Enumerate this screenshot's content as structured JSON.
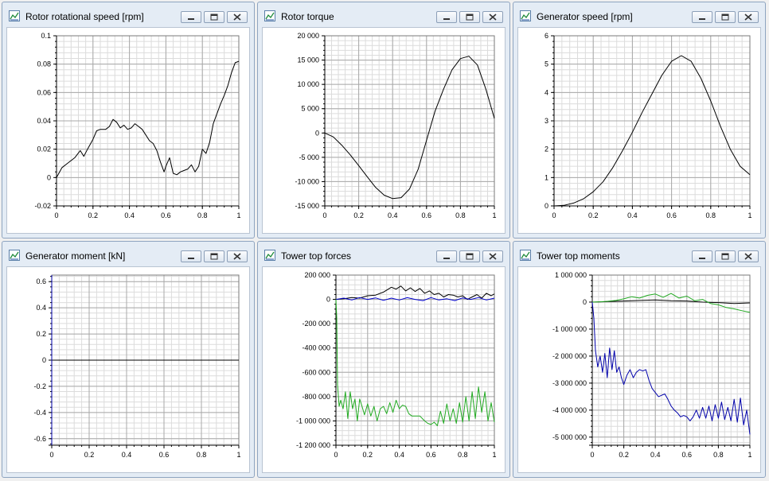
{
  "windows": [
    {
      "id": "rotor-speed",
      "title": "Rotor rotational speed [rpm]",
      "chart_data": {
        "type": "line",
        "title": "Rotor rotational speed [rpm]",
        "xlim": [
          0,
          1
        ],
        "ylim": [
          -0.02,
          0.1
        ],
        "x_ticks": [
          0,
          0.2,
          0.4,
          0.6,
          0.8,
          1
        ],
        "x_tick_labels": [
          "0",
          "0.2",
          "0.4",
          "0.6",
          "0.8",
          "1"
        ],
        "y_ticks": [
          -0.02,
          0,
          0.02,
          0.04,
          0.06,
          0.08,
          0.1
        ],
        "y_tick_labels": [
          "-0.02",
          "0",
          "0.02",
          "0.04",
          "0.06",
          "0.08",
          "0.1"
        ],
        "grid": true,
        "series": [
          {
            "color": "#000000",
            "x": [
              0,
              0.03,
              0.06,
              0.1,
              0.13,
              0.15,
              0.17,
              0.2,
              0.22,
              0.24,
              0.27,
              0.29,
              0.31,
              0.33,
              0.35,
              0.37,
              0.39,
              0.41,
              0.43,
              0.45,
              0.47,
              0.49,
              0.51,
              0.53,
              0.55,
              0.57,
              0.59,
              0.6,
              0.62,
              0.64,
              0.66,
              0.68,
              0.7,
              0.72,
              0.74,
              0.76,
              0.78,
              0.8,
              0.82,
              0.84,
              0.86,
              0.88,
              0.9,
              0.92,
              0.94,
              0.96,
              0.98,
              1
            ],
            "y": [
              0,
              0.007,
              0.01,
              0.014,
              0.019,
              0.015,
              0.02,
              0.027,
              0.033,
              0.034,
              0.034,
              0.036,
              0.041,
              0.039,
              0.035,
              0.037,
              0.034,
              0.035,
              0.038,
              0.036,
              0.034,
              0.03,
              0.026,
              0.024,
              0.019,
              0.011,
              0.004,
              0.008,
              0.014,
              0.003,
              0.002,
              0.004,
              0.005,
              0.006,
              0.009,
              0.004,
              0.008,
              0.02,
              0.017,
              0.025,
              0.038,
              0.045,
              0.052,
              0.058,
              0.065,
              0.074,
              0.081,
              0.082
            ]
          }
        ]
      }
    },
    {
      "id": "rotor-torque",
      "title": "Rotor torque",
      "chart_data": {
        "type": "line",
        "title": "Rotor torque",
        "xlim": [
          0,
          1
        ],
        "ylim": [
          -15000,
          20000
        ],
        "x_ticks": [
          0,
          0.2,
          0.4,
          0.6,
          0.8,
          1
        ],
        "x_tick_labels": [
          "0",
          "0.2",
          "0.4",
          "0.6",
          "0.8",
          "1"
        ],
        "y_ticks": [
          -15000,
          -10000,
          -5000,
          0,
          5000,
          10000,
          15000,
          20000
        ],
        "y_tick_labels": [
          "-15 000",
          "-10 000",
          "-5 000",
          "0",
          "5 000",
          "10 000",
          "15 000",
          "20 000"
        ],
        "grid": true,
        "series": [
          {
            "color": "#000000",
            "x": [
              0,
              0.05,
              0.1,
              0.15,
              0.2,
              0.25,
              0.3,
              0.35,
              0.4,
              0.45,
              0.5,
              0.55,
              0.6,
              0.65,
              0.7,
              0.75,
              0.8,
              0.85,
              0.9,
              0.95,
              1
            ],
            "y": [
              0,
              -800,
              -2500,
              -4500,
              -6700,
              -9000,
              -11200,
              -12800,
              -13500,
              -13300,
              -11500,
              -7500,
              -1500,
              4500,
              9000,
              13000,
              15300,
              15800,
              14000,
              9000,
              3000
            ]
          }
        ]
      }
    },
    {
      "id": "generator-speed",
      "title": "Generator speed [rpm]",
      "chart_data": {
        "type": "line",
        "title": "Generator speed [rpm]",
        "xlim": [
          0,
          1
        ],
        "ylim": [
          0,
          6
        ],
        "x_ticks": [
          0,
          0.2,
          0.4,
          0.6,
          0.8,
          1
        ],
        "x_tick_labels": [
          "0",
          "0.2",
          "0.4",
          "0.6",
          "0.8",
          "1"
        ],
        "y_ticks": [
          0,
          1,
          2,
          3,
          4,
          5,
          6
        ],
        "y_tick_labels": [
          "0",
          "1",
          "2",
          "3",
          "4",
          "5",
          "6"
        ],
        "grid": true,
        "series": [
          {
            "color": "#000000",
            "x": [
              0,
              0.05,
              0.1,
              0.15,
              0.2,
              0.25,
              0.3,
              0.35,
              0.4,
              0.45,
              0.5,
              0.55,
              0.6,
              0.65,
              0.7,
              0.75,
              0.8,
              0.85,
              0.9,
              0.95,
              1
            ],
            "y": [
              0,
              0.02,
              0.1,
              0.25,
              0.5,
              0.85,
              1.35,
              1.95,
              2.6,
              3.3,
              3.95,
              4.6,
              5.1,
              5.3,
              5.1,
              4.5,
              3.7,
              2.8,
              2,
              1.4,
              1.1
            ]
          }
        ]
      }
    },
    {
      "id": "generator-moment",
      "title": "Generator moment [kN]",
      "chart_data": {
        "type": "line",
        "title": "Generator moment [kN]",
        "xlim": [
          0,
          1
        ],
        "ylim": [
          -0.65,
          0.65
        ],
        "x_ticks": [
          0,
          0.2,
          0.4,
          0.6,
          0.8,
          1
        ],
        "x_tick_labels": [
          "0",
          "0.2",
          "0.4",
          "0.6",
          "0.8",
          "1"
        ],
        "y_ticks": [
          -0.6,
          -0.4,
          -0.2,
          0,
          0.2,
          0.4,
          0.6
        ],
        "y_tick_labels": [
          "-0.6",
          "-0.4",
          "-0.2",
          "0",
          "0.2",
          "0.4",
          "0.6"
        ],
        "grid": true,
        "series": [
          {
            "color": "#000000",
            "x": [
              0,
              1
            ],
            "y": [
              0,
              0
            ]
          },
          {
            "color": "#0000aa",
            "x": [
              0,
              0
            ],
            "y": [
              0.65,
              -0.65
            ]
          }
        ]
      }
    },
    {
      "id": "tower-top-forces",
      "title": "Tower top forces",
      "chart_data": {
        "type": "line",
        "title": "Tower top forces",
        "xlim": [
          0,
          1
        ],
        "ylim": [
          -1200000,
          200000
        ],
        "x_ticks": [
          0,
          0.2,
          0.4,
          0.6,
          0.8,
          1
        ],
        "x_tick_labels": [
          "0",
          "0.2",
          "0.4",
          "0.6",
          "0.8",
          "1"
        ],
        "y_ticks": [
          -1200000,
          -1000000,
          -800000,
          -600000,
          -400000,
          -200000,
          0,
          200000
        ],
        "y_tick_labels": [
          "-1 200 000",
          "-1 000 000",
          "-800 000",
          "-600 000",
          "-400 000",
          "-200 000",
          "0",
          "200 000"
        ],
        "grid": true,
        "series": [
          {
            "color": "#000000",
            "x": [
              0,
              0.05,
              0.1,
              0.15,
              0.2,
              0.25,
              0.3,
              0.35,
              0.38,
              0.41,
              0.44,
              0.47,
              0.5,
              0.53,
              0.56,
              0.59,
              0.62,
              0.65,
              0.68,
              0.71,
              0.74,
              0.77,
              0.8,
              0.83,
              0.86,
              0.89,
              0.92,
              0.95,
              0.98,
              1
            ],
            "y": [
              0,
              5000,
              15000,
              10000,
              30000,
              35000,
              60000,
              100000,
              85000,
              110000,
              70000,
              95000,
              65000,
              90000,
              50000,
              70000,
              40000,
              50000,
              20000,
              40000,
              35000,
              20000,
              30000,
              0,
              20000,
              40000,
              10000,
              50000,
              30000,
              45000
            ]
          },
          {
            "color": "#0000cc",
            "x": [
              0,
              0.05,
              0.1,
              0.15,
              0.2,
              0.25,
              0.3,
              0.35,
              0.4,
              0.45,
              0.5,
              0.55,
              0.6,
              0.65,
              0.7,
              0.75,
              0.8,
              0.85,
              0.9,
              0.95,
              1
            ],
            "y": [
              0,
              10000,
              -5000,
              15000,
              0,
              12000,
              -8000,
              10000,
              -5000,
              14000,
              0,
              -10000,
              15000,
              -5000,
              5000,
              -10000,
              12000,
              0,
              15000,
              -5000,
              10000
            ]
          },
          {
            "color": "#22aa22",
            "x": [
              0,
              0.005,
              0.01,
              0.02,
              0.03,
              0.045,
              0.06,
              0.075,
              0.09,
              0.105,
              0.12,
              0.135,
              0.15,
              0.165,
              0.18,
              0.2,
              0.22,
              0.24,
              0.26,
              0.28,
              0.3,
              0.32,
              0.34,
              0.36,
              0.38,
              0.4,
              0.42,
              0.44,
              0.46,
              0.48,
              0.5,
              0.53,
              0.56,
              0.58,
              0.6,
              0.62,
              0.64,
              0.66,
              0.68,
              0.7,
              0.72,
              0.74,
              0.76,
              0.78,
              0.8,
              0.82,
              0.84,
              0.86,
              0.88,
              0.9,
              0.92,
              0.94,
              0.96,
              0.98,
              1
            ],
            "y": [
              0,
              -150000,
              -700000,
              -880000,
              -830000,
              -900000,
              -760000,
              -980000,
              -760000,
              -900000,
              -820000,
              -1000000,
              -820000,
              -880000,
              -950000,
              -860000,
              -960000,
              -880000,
              -1000000,
              -900000,
              -880000,
              -940000,
              -850000,
              -930000,
              -830000,
              -900000,
              -870000,
              -880000,
              -940000,
              -960000,
              -960000,
              -960000,
              -1000000,
              -1020000,
              -1030000,
              -1010000,
              -1040000,
              -920000,
              -1020000,
              -860000,
              -1000000,
              -900000,
              -1020000,
              -850000,
              -1010000,
              -800000,
              -1000000,
              -760000,
              -980000,
              -720000,
              -930000,
              -760000,
              -1000000,
              -850000,
              -1010000
            ]
          }
        ]
      }
    },
    {
      "id": "tower-top-moments",
      "title": "Tower top moments",
      "chart_data": {
        "type": "line",
        "title": "Tower top moments",
        "xlim": [
          0,
          1
        ],
        "ylim": [
          -5300000,
          1000000
        ],
        "x_ticks": [
          0,
          0.2,
          0.4,
          0.6,
          0.8,
          1
        ],
        "x_tick_labels": [
          "0",
          "0.2",
          "0.4",
          "0.6",
          "0.8",
          "1"
        ],
        "y_ticks": [
          -5000000,
          -4000000,
          -3000000,
          -2000000,
          -1000000,
          0,
          1000000
        ],
        "y_tick_labels": [
          "-5 000 000",
          "-4 000 000",
          "-3 000 000",
          "-2 000 000",
          "-1 000 000",
          "0",
          "1 000 000"
        ],
        "grid": true,
        "series": [
          {
            "color": "#000000",
            "x": [
              0,
              0.1,
              0.2,
              0.3,
              0.4,
              0.5,
              0.6,
              0.7,
              0.8,
              0.9,
              1
            ],
            "y": [
              0,
              20000,
              40000,
              60000,
              80000,
              50000,
              40000,
              0,
              -20000,
              -50000,
              -30000
            ]
          },
          {
            "color": "#22aa22",
            "x": [
              0,
              0.05,
              0.1,
              0.15,
              0.2,
              0.25,
              0.3,
              0.35,
              0.4,
              0.45,
              0.5,
              0.55,
              0.6,
              0.65,
              0.7,
              0.75,
              0.8,
              0.85,
              0.9,
              0.95,
              1
            ],
            "y": [
              0,
              10000,
              30000,
              60000,
              120000,
              200000,
              150000,
              250000,
              300000,
              180000,
              320000,
              150000,
              220000,
              50000,
              100000,
              -50000,
              -100000,
              -200000,
              -250000,
              -320000,
              -380000
            ]
          },
          {
            "color": "#0000aa",
            "x": [
              0,
              0.01,
              0.02,
              0.035,
              0.05,
              0.065,
              0.08,
              0.095,
              0.11,
              0.125,
              0.14,
              0.155,
              0.17,
              0.185,
              0.2,
              0.22,
              0.24,
              0.26,
              0.28,
              0.3,
              0.32,
              0.34,
              0.36,
              0.38,
              0.4,
              0.42,
              0.44,
              0.46,
              0.48,
              0.5,
              0.52,
              0.54,
              0.56,
              0.58,
              0.6,
              0.62,
              0.64,
              0.66,
              0.68,
              0.7,
              0.72,
              0.74,
              0.76,
              0.78,
              0.8,
              0.82,
              0.84,
              0.86,
              0.88,
              0.9,
              0.92,
              0.94,
              0.96,
              0.98,
              1
            ],
            "y": [
              0,
              -600000,
              -1800000,
              -2400000,
              -2000000,
              -2600000,
              -1900000,
              -2800000,
              -1700000,
              -2500000,
              -1800000,
              -2600000,
              -2400000,
              -2800000,
              -3050000,
              -2700000,
              -2500000,
              -2800000,
              -2600000,
              -2500000,
              -2550000,
              -2500000,
              -2900000,
              -3200000,
              -3350000,
              -3500000,
              -3450000,
              -3400000,
              -3600000,
              -3850000,
              -4000000,
              -4100000,
              -4250000,
              -4200000,
              -4250000,
              -4400000,
              -4250000,
              -4000000,
              -4300000,
              -3900000,
              -4300000,
              -3850000,
              -4400000,
              -3800000,
              -4300000,
              -3700000,
              -4350000,
              -3900000,
              -4400000,
              -3600000,
              -4450000,
              -3550000,
              -4550000,
              -4000000,
              -4900000
            ]
          }
        ]
      }
    }
  ]
}
